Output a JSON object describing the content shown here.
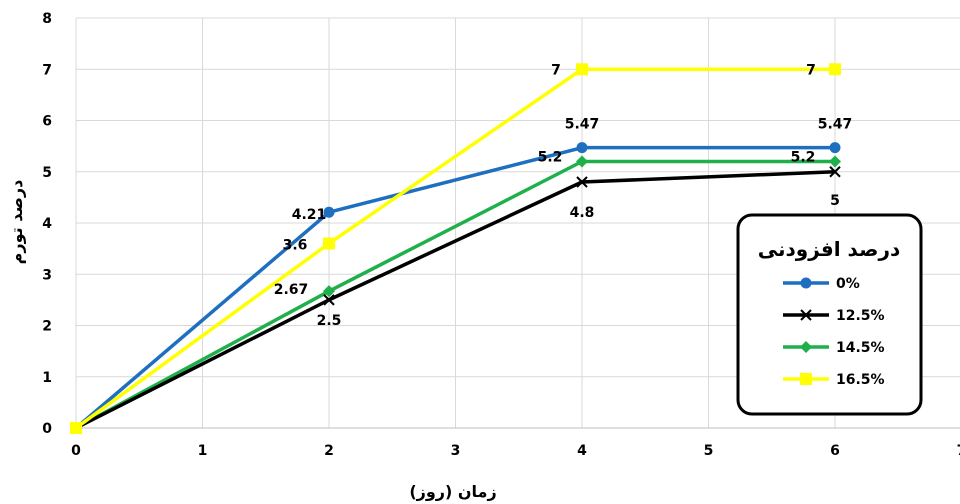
{
  "chart_data": {
    "type": "line",
    "xlabel": "زمان (روز)",
    "ylabel": "درصد تورم",
    "xlim": [
      0,
      7
    ],
    "ylim": [
      0,
      8
    ],
    "x_ticks": [
      "0",
      "1",
      "2",
      "3",
      "4",
      "5",
      "6",
      "7"
    ],
    "y_ticks": [
      "0",
      "1",
      "2",
      "3",
      "4",
      "5",
      "6",
      "7",
      "8"
    ],
    "grid": "vertical and horizontal",
    "legend": {
      "title": "درصد افزودنی",
      "position": "right"
    },
    "x": [
      0,
      2,
      4,
      6
    ],
    "series": [
      {
        "name": "0%",
        "color": "#1f6fc0",
        "marker": "circle",
        "values": [
          0,
          4.21,
          5.47,
          5.47
        ],
        "labels": [
          "",
          "4.21",
          "5.47",
          "5.47"
        ]
      },
      {
        "name": "12.5%",
        "color": "#000000",
        "marker": "x",
        "values": [
          0,
          2.5,
          4.8,
          5
        ],
        "labels": [
          "",
          "2.5",
          "4.8",
          "5"
        ]
      },
      {
        "name": "14.5%",
        "color": "#1fb04b",
        "marker": "diamond",
        "values": [
          0,
          2.67,
          5.2,
          5.2
        ],
        "labels": [
          "",
          "2.67",
          "5.2",
          "5.2"
        ]
      },
      {
        "name": "16.5%",
        "color": "#ffff00",
        "marker": "square",
        "values": [
          0,
          3.6,
          7,
          7
        ],
        "labels": [
          "",
          "3.6",
          "7",
          "7"
        ]
      }
    ]
  }
}
